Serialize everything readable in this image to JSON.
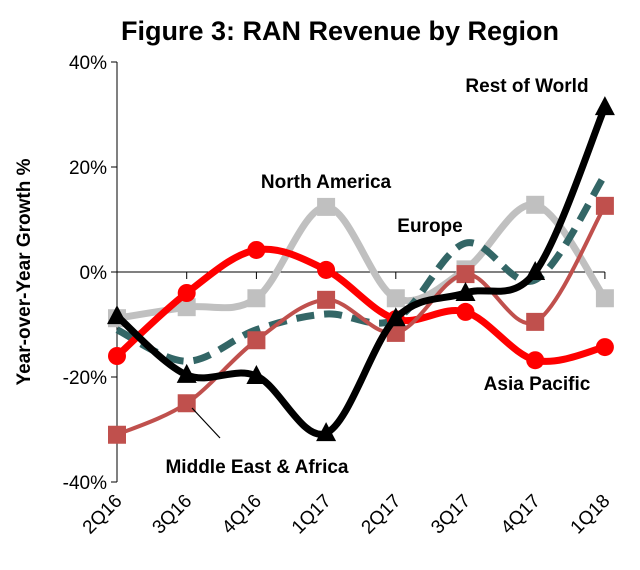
{
  "chart_data": {
    "type": "line",
    "title": "Figure 3: RAN Revenue by Region",
    "xlabel": "",
    "ylabel": "Year-over-Year Growth %",
    "ylim": [
      -40,
      40
    ],
    "yticks": [
      -40,
      -20,
      0,
      20,
      40
    ],
    "ytick_labels": [
      "-40%",
      "-20%",
      "0%",
      "20%",
      "40%"
    ],
    "categories": [
      "2Q16",
      "3Q16",
      "4Q16",
      "1Q17",
      "2Q17",
      "3Q17",
      "4Q17",
      "1Q18"
    ],
    "grid": false,
    "series": [
      {
        "name": "North America",
        "color": "#c0c0c0",
        "marker": "square",
        "dash": false,
        "values": [
          -8.8,
          -6.7,
          -5.0,
          12.4,
          -5.0,
          0.5,
          12.8,
          -5.0
        ]
      },
      {
        "name": "Europe",
        "color": "#336666",
        "marker": "none",
        "dash": true,
        "values": [
          -11.0,
          -17.0,
          -11.0,
          -8.0,
          -9.0,
          5.5,
          -1.5,
          18.5
        ]
      },
      {
        "name": "Asia Pacific",
        "color": "#ff0000",
        "marker": "circle",
        "dash": false,
        "values": [
          -16.0,
          -4.0,
          4.2,
          0.4,
          -9.0,
          -7.6,
          -16.8,
          -14.3
        ]
      },
      {
        "name": "Middle East & Africa",
        "color": "#c0504d",
        "marker": "square",
        "dash": false,
        "values": [
          -31.0,
          -25.0,
          -13.0,
          -5.3,
          -11.6,
          -0.4,
          -9.5,
          12.6
        ]
      },
      {
        "name": "Rest of World",
        "color": "#000000",
        "marker": "triangle",
        "dash": false,
        "values": [
          -8.4,
          -19.6,
          -19.8,
          -30.7,
          -8.8,
          -4.0,
          0.0,
          31.4
        ]
      }
    ],
    "annotations": [
      "Rest of World",
      "North America",
      "Europe",
      "Asia Pacific",
      "Middle East & Africa"
    ]
  }
}
